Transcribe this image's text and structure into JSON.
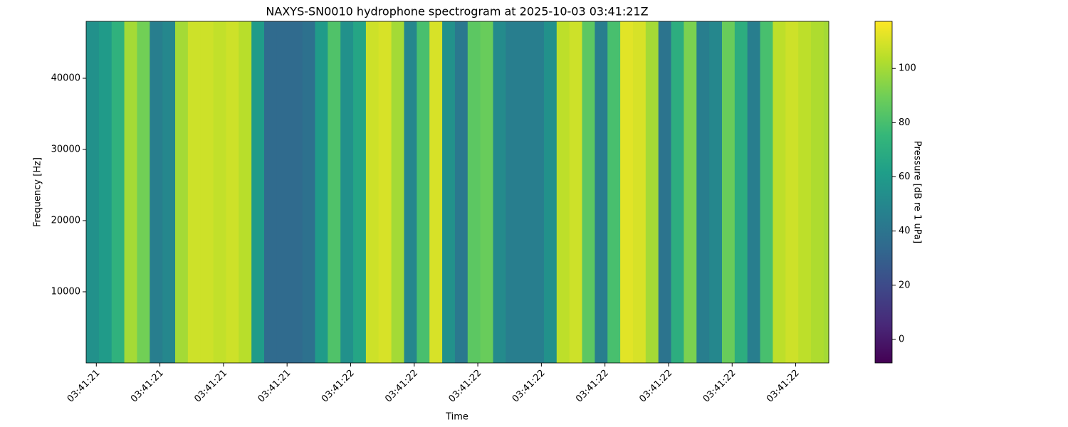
{
  "chart_data": {
    "type": "heatmap",
    "title": "NAXYS-SN0010 hydrophone spectrogram at 2025-10-03 03:41:21Z",
    "x_label": "Time",
    "y_label": "Frequency [Hz]",
    "colorbar_label": "Pressure [dB re 1 uPa]",
    "colormap": "viridis",
    "xbins": [
      0.584,
      0.604,
      0.624,
      0.644,
      0.664,
      0.684,
      0.704,
      0.724,
      0.744,
      0.764,
      0.784,
      0.804,
      0.824,
      0.844,
      0.864,
      0.884,
      0.904,
      0.924,
      0.944,
      0.964,
      0.984,
      1.004,
      1.024,
      1.044,
      1.064,
      1.084,
      1.104,
      1.124,
      1.144,
      1.164,
      1.184,
      1.204,
      1.224,
      1.244,
      1.264,
      1.284,
      1.304,
      1.324,
      1.344,
      1.364,
      1.384,
      1.404,
      1.424,
      1.444,
      1.464,
      1.484,
      1.504,
      1.524,
      1.544,
      1.564,
      1.584,
      1.604,
      1.624,
      1.644,
      1.664,
      1.684,
      1.704,
      1.724,
      1.744,
      1.752
    ],
    "values": [
      55,
      60,
      72,
      100,
      90,
      45,
      50,
      100,
      108,
      108,
      106,
      108,
      104,
      60,
      35,
      35,
      35,
      38,
      60,
      82,
      55,
      65,
      108,
      110,
      100,
      50,
      80,
      110,
      55,
      42,
      85,
      88,
      52,
      45,
      45,
      45,
      55,
      105,
      108,
      85,
      45,
      80,
      112,
      110,
      100,
      40,
      70,
      92,
      45,
      50,
      88,
      70,
      45,
      80,
      105,
      108,
      105,
      102,
      100
    ],
    "xlim": [
      0.584,
      1.752
    ],
    "xticks": [
      {
        "value": 0.6,
        "label": "03:41:21"
      },
      {
        "value": 0.7,
        "label": "03:41:21"
      },
      {
        "value": 0.8,
        "label": "03:41:21"
      },
      {
        "value": 0.9,
        "label": "03:41:21"
      },
      {
        "value": 1.0,
        "label": "03:41:22"
      },
      {
        "value": 1.1,
        "label": "03:41:22"
      },
      {
        "value": 1.2,
        "label": "03:41:22"
      },
      {
        "value": 1.3,
        "label": "03:41:22"
      },
      {
        "value": 1.4,
        "label": "03:41:22"
      },
      {
        "value": 1.5,
        "label": "03:41:22"
      },
      {
        "value": 1.6,
        "label": "03:41:22"
      },
      {
        "value": 1.7,
        "label": "03:41:22"
      }
    ],
    "ylim": [
      0,
      48000
    ],
    "yticks": [
      10000,
      20000,
      30000,
      40000
    ],
    "clim": [
      -8.7,
      117.4
    ],
    "cticks": [
      0,
      20,
      40,
      60,
      80,
      100
    ]
  }
}
